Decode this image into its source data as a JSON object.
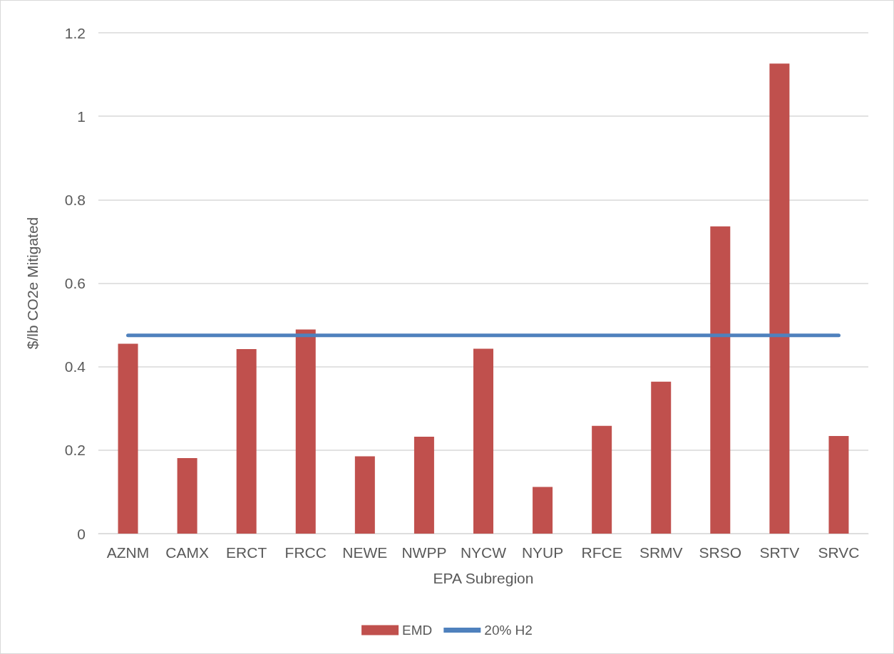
{
  "chart_data": {
    "type": "bar",
    "xlabel": "EPA Subregion",
    "ylabel": "$/lb CO2e Mitigated",
    "categories": [
      "AZNM",
      "CAMX",
      "ERCT",
      "FRCC",
      "NEWE",
      "NWPP",
      "NYCW",
      "NYUP",
      "RFCE",
      "SRMV",
      "SRSO",
      "SRTV",
      "SRVC"
    ],
    "series": [
      {
        "name": "EMD",
        "color": "#c0504d",
        "values": [
          0.455,
          0.181,
          0.442,
          0.489,
          0.185,
          0.232,
          0.443,
          0.112,
          0.258,
          0.364,
          0.736,
          1.126,
          0.234
        ]
      },
      {
        "name": "20% H2",
        "type": "line",
        "color": "#4f81bd",
        "values": [
          0.475,
          0.475,
          0.475,
          0.475,
          0.475,
          0.475,
          0.475,
          0.475,
          0.475,
          0.475,
          0.475,
          0.475,
          0.475
        ]
      }
    ],
    "ylim": [
      0,
      1.2
    ],
    "yticks": [
      0,
      0.2,
      0.4,
      0.6,
      0.8,
      1,
      1.2
    ],
    "grid": "y",
    "legend": "bottom",
    "marker": "none",
    "line_style": "solid"
  }
}
